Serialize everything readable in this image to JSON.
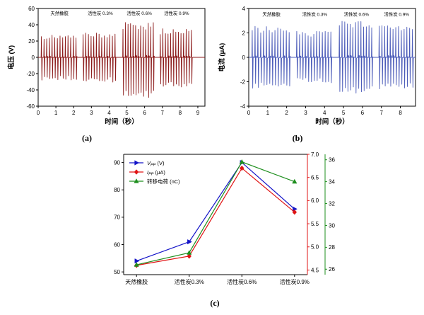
{
  "figure": {
    "background": "#ffffff",
    "labels": {
      "a": "(a)",
      "b": "(b)",
      "c": "(c)"
    }
  },
  "chart_data": [
    {
      "id": "chart-a",
      "type": "line",
      "title": "",
      "xlabel": "时间（秒）",
      "ylabel": "电压 (V)",
      "xlim": [
        0,
        9.4
      ],
      "ylim": [
        -60,
        60
      ],
      "xticks": [
        0,
        1,
        2,
        3,
        4,
        5,
        6,
        7,
        8,
        9
      ],
      "yticks": [
        -60,
        -40,
        -20,
        0,
        20,
        40,
        60
      ],
      "grid": false,
      "line_color": "#8b1a1a",
      "annotations": [
        {
          "text": "天然橡胶",
          "x": 1.2,
          "y": 52
        },
        {
          "text": "活性炭 0.3%",
          "x": 3.5,
          "y": 52
        },
        {
          "text": "活性炭 0.6%",
          "x": 5.7,
          "y": 52
        },
        {
          "text": "活性炭 0.9%",
          "x": 7.8,
          "y": 52
        }
      ],
      "bursts": [
        {
          "label": "天然橡胶",
          "start": 0.15,
          "end": 2.25,
          "spikes": 14,
          "peak_pos": 27,
          "peak_neg": 28
        },
        {
          "label": "活性炭 0.3%",
          "start": 2.5,
          "end": 4.45,
          "spikes": 13,
          "peak_pos": 30,
          "peak_neg": 30
        },
        {
          "label": "活性炭 0.6%",
          "start": 4.75,
          "end": 6.6,
          "spikes": 13,
          "peak_pos": 42,
          "peak_neg": 50
        },
        {
          "label": "活性炭 0.9%",
          "start": 6.85,
          "end": 8.75,
          "spikes": 13,
          "peak_pos": 35,
          "peak_neg": 37
        }
      ]
    },
    {
      "id": "chart-b",
      "type": "line",
      "title": "",
      "xlabel": "时间（秒）",
      "ylabel": "电流 (μA)",
      "xlim": [
        0,
        8.8
      ],
      "ylim": [
        -4,
        4
      ],
      "xticks": [
        0,
        1,
        2,
        3,
        4,
        5,
        6,
        7,
        8
      ],
      "yticks": [
        -4,
        -2,
        0,
        2,
        4
      ],
      "grid": false,
      "line_color": "#4a5ab8",
      "annotations": [
        {
          "text": "天然橡胶",
          "x": 1.2,
          "y": 3.4
        },
        {
          "text": "活性炭 0.3%",
          "x": 3.48,
          "y": 3.4
        },
        {
          "text": "活性炭 0.6%",
          "x": 5.68,
          "y": 3.4
        },
        {
          "text": "活性炭 0.9%",
          "x": 7.8,
          "y": 3.4
        }
      ],
      "bursts": [
        {
          "label": "天然橡胶",
          "start": 0.15,
          "end": 2.25,
          "spikes": 14,
          "peak_pos": 2.5,
          "peak_neg": 2.5
        },
        {
          "label": "活性炭 0.3%",
          "start": 2.5,
          "end": 4.45,
          "spikes": 13,
          "peak_pos": 2.1,
          "peak_neg": 2.1
        },
        {
          "label": "活性炭 0.6%",
          "start": 4.75,
          "end": 6.6,
          "spikes": 13,
          "peak_pos": 2.9,
          "peak_neg": 2.9
        },
        {
          "label": "活性炭 0.9%",
          "start": 6.85,
          "end": 8.75,
          "spikes": 13,
          "peak_pos": 2.6,
          "peak_neg": 2.6
        }
      ]
    },
    {
      "id": "chart-c",
      "type": "line",
      "title": "",
      "categories": [
        "天然橡胶",
        "活性炭0.3%",
        "活性炭0.6%",
        "活性炭0.9%"
      ],
      "legend_position": "top-left",
      "series": [
        {
          "name_pre": "V",
          "name_sub": "PP",
          "name_post": " (V)",
          "axis": "left",
          "color": "#1414c8",
          "marker": "triangle-right",
          "values": [
            54,
            61,
            90,
            73
          ]
        },
        {
          "name_pre": "I",
          "name_sub": "PP",
          "name_post": " (μA)",
          "axis": "right1",
          "color": "#e01414",
          "marker": "diamond",
          "values": [
            4.6,
            4.8,
            6.7,
            5.75
          ]
        },
        {
          "name_pre": "转移电荷",
          "name_sub": "",
          "name_post": " (nC)",
          "axis": "right2",
          "color": "#1f8f1f",
          "marker": "triangle-up",
          "values": [
            26.4,
            27.5,
            35.8,
            34.0
          ]
        }
      ],
      "axes": {
        "left": {
          "lim": [
            49,
            93
          ],
          "ticks": [
            50,
            60,
            70,
            80,
            90
          ],
          "decimals": 0,
          "color": "#000000"
        },
        "right1": {
          "lim": [
            4.4,
            7.0
          ],
          "ticks": [
            4.5,
            5.0,
            5.5,
            6.0,
            6.5,
            7.0
          ],
          "decimals": 1,
          "color": "#e01414"
        },
        "right2": {
          "lim": [
            25.5,
            36.5
          ],
          "ticks": [
            26,
            28,
            30,
            32,
            34,
            36
          ],
          "decimals": 0,
          "color": "#1f8f1f"
        }
      }
    }
  ]
}
